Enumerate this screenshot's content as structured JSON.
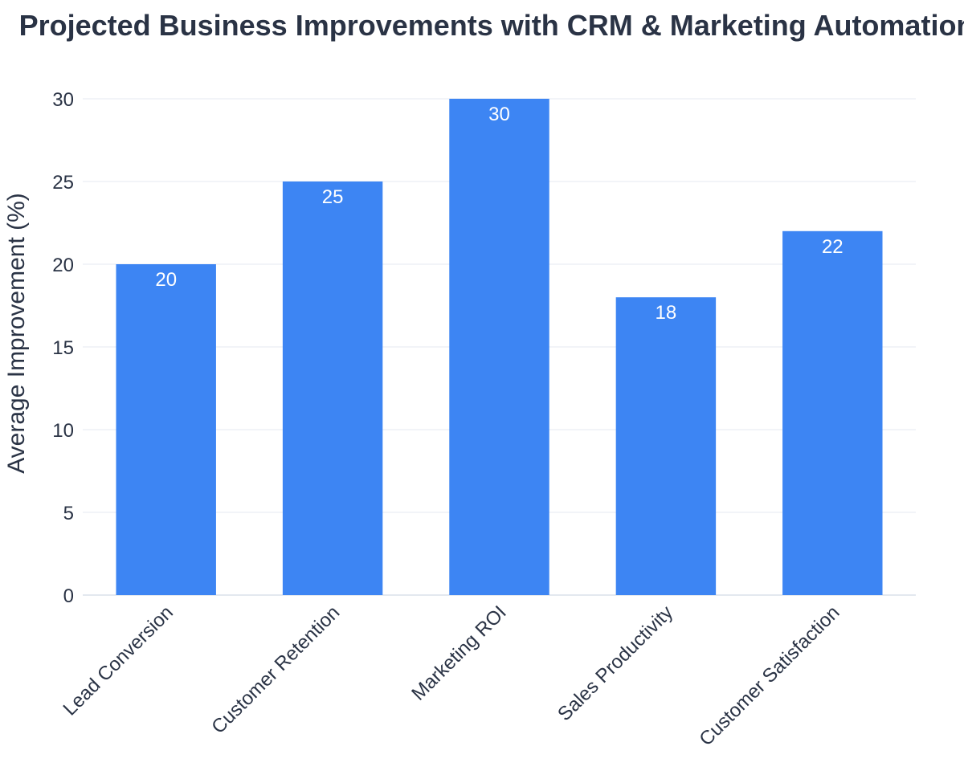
{
  "chart_data": {
    "type": "bar",
    "title": "Projected Business Improvements with CRM & Marketing Automation",
    "ylabel": "Average Improvement (%)",
    "xlabel": "",
    "categories": [
      "Lead Conversion",
      "Customer Retention",
      "Marketing ROI",
      "Sales Productivity",
      "Customer Satisfaction"
    ],
    "values": [
      20,
      25,
      30,
      18,
      22
    ],
    "data_labels": [
      "20",
      "25",
      "30",
      "18",
      "22"
    ],
    "ylim": [
      0,
      30
    ],
    "yticks": [
      0,
      5,
      10,
      15,
      20,
      25,
      30
    ],
    "ytick_labels": [
      "0",
      "5",
      "10",
      "15",
      "20",
      "25",
      "30"
    ],
    "grid": true,
    "legend": "none",
    "colors": {
      "bar": "#3d85f3",
      "grid": "#eef1f5",
      "text": "#2a3345"
    }
  }
}
